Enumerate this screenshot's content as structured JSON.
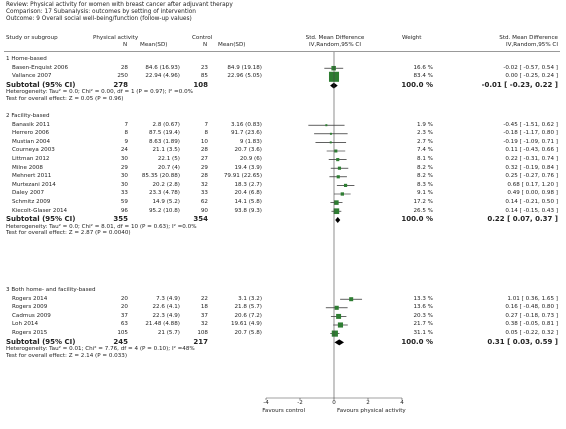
{
  "review": {
    "line1": "Review:  Physical activity for women with breast cancer after adjuvant therapy",
    "line2": "Comparison:  17 Subanalysis: outcomes by setting of intervention",
    "line3": "Outcome:  9 Overall social well-being/function (follow-up values)"
  },
  "header": {
    "study": "Study or subgroup",
    "pa_group": "Physical activity",
    "control_group": "Control",
    "n": "N",
    "mean_sd": "Mean(SD)",
    "smd_title": "Std. Mean Difference",
    "smd_method": "IV,Random,95% CI",
    "weight": "Weight",
    "smd_title2": "Std. Mean Difference",
    "smd_method2": "IV,Random,95% CI"
  },
  "colors": {
    "box": "#2e7d32",
    "diamond": "#000000",
    "axis": "#444444"
  },
  "axis": {
    "ticks": [
      "-4",
      "-2",
      "0",
      "2",
      "4"
    ],
    "favours_left": "Favours control",
    "favours_right": "Favours physical activity"
  },
  "groups": [
    {
      "title": "1 Home-based",
      "studies": [
        {
          "name": "Basen-Enquist 2006",
          "n1": "28",
          "m1": "84.6 (16.93)",
          "n2": "23",
          "m2": "84.9 (19.18)",
          "weight": "16.6 %",
          "ci": "-0.02 [ -0.57, 0.54 ]",
          "est": -0.02,
          "lo": -0.57,
          "hi": 0.54,
          "w": 16.6
        },
        {
          "name": "Vallance 2007",
          "n1": "250",
          "m1": "22.94 (4.96)",
          "n2": "85",
          "m2": "22.96 (5.05)",
          "weight": "83.4 %",
          "ci": "0.00 [ -0.25, 0.24 ]",
          "est": 0.0,
          "lo": -0.25,
          "hi": 0.24,
          "w": 83.4
        }
      ],
      "subtotal": {
        "label": "Subtotal (95% CI)",
        "n1": "278",
        "n2": "108",
        "weight": "100.0 %",
        "ci": "-0.01 [ -0.23, 0.22 ]",
        "est": -0.01,
        "lo": -0.23,
        "hi": 0.22
      },
      "het": "Heterogeneity: Tau² = 0.0; Chi² = 0.00, df = 1 (P = 0.97); I² =0.0%",
      "effect": "Test for overall effect: Z = 0.05 (P = 0.96)"
    },
    {
      "title": "2 Facility-based",
      "studies": [
        {
          "name": "Banasik 2011",
          "n1": "7",
          "m1": "2.8 (0.67)",
          "n2": "7",
          "m2": "3.16 (0.83)",
          "weight": "1.9 %",
          "ci": "-0.45 [ -1.51, 0.62 ]",
          "est": -0.45,
          "lo": -1.51,
          "hi": 0.62,
          "w": 1.9
        },
        {
          "name": "Herrero 2006",
          "n1": "8",
          "m1": "87.5 (19.4)",
          "n2": "8",
          "m2": "91.7 (23.6)",
          "weight": "2.3 %",
          "ci": "-0.18 [ -1.17, 0.80 ]",
          "est": -0.18,
          "lo": -1.17,
          "hi": 0.8,
          "w": 2.3
        },
        {
          "name": "Mustian 2004",
          "n1": "9",
          "m1": "8.63 (1.89)",
          "n2": "10",
          "m2": "9 (1.83)",
          "weight": "2.7 %",
          "ci": "-0.19 [ -1.09, 0.71 ]",
          "est": -0.19,
          "lo": -1.09,
          "hi": 0.71,
          "w": 2.7
        },
        {
          "name": "Courneya 2003",
          "n1": "24",
          "m1": "21.1 (3.5)",
          "n2": "28",
          "m2": "20.7 (3.6)",
          "weight": "7.4 %",
          "ci": "0.11 [ -0.43, 0.66 ]",
          "est": 0.11,
          "lo": -0.43,
          "hi": 0.66,
          "w": 7.4
        },
        {
          "name": "Littman 2012",
          "n1": "30",
          "m1": "22.1 (5)",
          "n2": "27",
          "m2": "20.9 (6)",
          "weight": "8.1 %",
          "ci": "0.22 [ -0.31, 0.74 ]",
          "est": 0.22,
          "lo": -0.31,
          "hi": 0.74,
          "w": 8.1
        },
        {
          "name": "Milne 2008",
          "n1": "29",
          "m1": "20.7 (4)",
          "n2": "29",
          "m2": "19.4 (3.9)",
          "weight": "8.2 %",
          "ci": "0.32 [ -0.19, 0.84 ]",
          "est": 0.32,
          "lo": -0.19,
          "hi": 0.84,
          "w": 8.2
        },
        {
          "name": "Mehnert 2011",
          "n1": "30",
          "m1": "85.35 (20.88)",
          "n2": "28",
          "m2": "79.91 (22.65)",
          "weight": "8.2 %",
          "ci": "0.25 [ -0.27, 0.76 ]",
          "est": 0.25,
          "lo": -0.27,
          "hi": 0.76,
          "w": 8.2
        },
        {
          "name": "Murtezani 2014",
          "n1": "30",
          "m1": "20.2 (2.8)",
          "n2": "32",
          "m2": "18.3 (2.7)",
          "weight": "8.3 %",
          "ci": "0.68 [ 0.17, 1.20 ]",
          "est": 0.68,
          "lo": 0.17,
          "hi": 1.2,
          "w": 8.3
        },
        {
          "name": "Daley 2007",
          "n1": "33",
          "m1": "23.3 (4.78)",
          "n2": "33",
          "m2": "20.4 (6.8)",
          "weight": "9.1 %",
          "ci": "0.49 [ 0.00, 0.98 ]",
          "est": 0.49,
          "lo": 0.0,
          "hi": 0.98,
          "w": 9.1
        },
        {
          "name": "Schmitz 2009",
          "n1": "59",
          "m1": "14.9 (5.2)",
          "n2": "62",
          "m2": "14.1 (5.8)",
          "weight": "17.2 %",
          "ci": "0.14 [ -0.21, 0.50 ]",
          "est": 0.14,
          "lo": -0.21,
          "hi": 0.5,
          "w": 17.2
        },
        {
          "name": "Kiecolt-Glaser 2014",
          "n1": "96",
          "m1": "95.2 (10.8)",
          "n2": "90",
          "m2": "93.8 (9.3)",
          "weight": "26.5 %",
          "ci": "0.14 [ -0.15, 0.43 ]",
          "est": 0.14,
          "lo": -0.15,
          "hi": 0.43,
          "w": 26.5
        }
      ],
      "subtotal": {
        "label": "Subtotal (95% CI)",
        "n1": "355",
        "n2": "354",
        "weight": "100.0 %",
        "ci": "0.22 [ 0.07, 0.37 ]",
        "est": 0.22,
        "lo": 0.07,
        "hi": 0.37
      },
      "het": "Heterogeneity: Tau² = 0.0; Chi² = 8.01, df = 10 (P = 0.63); I² =0.0%",
      "effect": "Test for overall effect: Z = 2.87 (P = 0.0040)"
    },
    {
      "title": "3 Both home- and facility-based",
      "studies": [
        {
          "name": "Rogers 2014",
          "n1": "20",
          "m1": "7.3 (4.9)",
          "n2": "22",
          "m2": "3.1 (3.2)",
          "weight": "13.3 %",
          "ci": "1.01 [ 0.36, 1.65 ]",
          "est": 1.01,
          "lo": 0.36,
          "hi": 1.65,
          "w": 13.3
        },
        {
          "name": "Rogers 2009",
          "n1": "20",
          "m1": "22.6 (4.1)",
          "n2": "18",
          "m2": "21.8 (5.7)",
          "weight": "13.6 %",
          "ci": "0.16 [ -0.48, 0.80 ]",
          "est": 0.16,
          "lo": -0.48,
          "hi": 0.8,
          "w": 13.6
        },
        {
          "name": "Cadmus 2009",
          "n1": "37",
          "m1": "22.3 (4.9)",
          "n2": "37",
          "m2": "20.6 (7.2)",
          "weight": "20.3 %",
          "ci": "0.27 [ -0.18, 0.73 ]",
          "est": 0.27,
          "lo": -0.18,
          "hi": 0.73,
          "w": 20.3
        },
        {
          "name": "Loh 2014",
          "n1": "63",
          "m1": "21.48 (4.88)",
          "n2": "32",
          "m2": "19.61 (4.9)",
          "weight": "21.7 %",
          "ci": "0.38 [ -0.05, 0.81 ]",
          "est": 0.38,
          "lo": -0.05,
          "hi": 0.81,
          "w": 21.7
        },
        {
          "name": "Rogers 2015",
          "n1": "105",
          "m1": "21 (5.7)",
          "n2": "108",
          "m2": "20.7 (5.8)",
          "weight": "31.1 %",
          "ci": "0.05 [ -0.22, 0.32 ]",
          "est": 0.05,
          "lo": -0.22,
          "hi": 0.32,
          "w": 31.1
        }
      ],
      "subtotal": {
        "label": "Subtotal (95% CI)",
        "n1": "245",
        "n2": "217",
        "weight": "100.0 %",
        "ci": "0.31 [ 0.03, 0.59 ]",
        "est": 0.31,
        "lo": 0.03,
        "hi": 0.59
      },
      "het": "Heterogeneity: Tau² = 0.01; Chi² = 7.76, df = 4 (P = 0.10); I² =48%",
      "effect": "Test for overall effect: Z = 2.14 (P = 0.033)"
    }
  ],
  "chart_data": {
    "type": "forest",
    "xlim": [
      -4,
      4
    ],
    "xticks": [
      -4,
      -2,
      0,
      2,
      4
    ],
    "xlabel_left": "Favours control",
    "xlabel_right": "Favours physical activity"
  }
}
